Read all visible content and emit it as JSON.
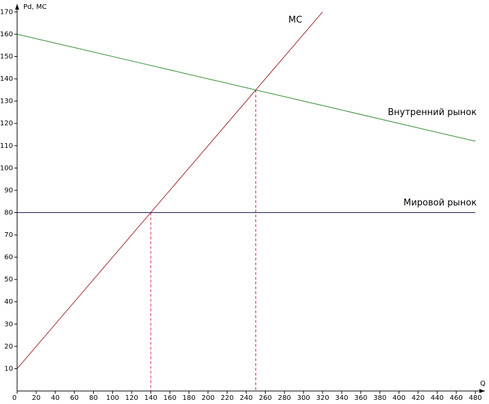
{
  "chart_data": {
    "type": "line",
    "y_label": "Pd, MC",
    "x_label": "Q",
    "x": [
      0,
      140,
      250,
      320,
      480
    ],
    "series": [
      {
        "name": "MC",
        "color": "#a0282d",
        "values": [
          10,
          80,
          135,
          170,
          null
        ]
      },
      {
        "name": "Внутренний рынок",
        "color": "#2e8b2e",
        "values": [
          160,
          146,
          135,
          128,
          112
        ]
      },
      {
        "name": "Мировой рынок",
        "color": "#1a1a5a",
        "values": [
          80,
          80,
          80,
          80,
          80
        ]
      }
    ],
    "guides": [
      {
        "x": 140,
        "y": 80
      },
      {
        "x": 250,
        "y": 135
      }
    ],
    "guide_color": "#e0202a",
    "xlim": [
      0,
      490
    ],
    "ylim": [
      0,
      173.5
    ],
    "xticks": [
      0,
      20,
      40,
      60,
      80,
      100,
      120,
      140,
      160,
      180,
      200,
      220,
      240,
      260,
      280,
      300,
      320,
      340,
      360,
      380,
      400,
      420,
      440,
      460,
      480
    ],
    "yticks": [
      10,
      20,
      30,
      40,
      50,
      60,
      70,
      80,
      90,
      100,
      110,
      120,
      130,
      140,
      150,
      160,
      170
    ]
  }
}
